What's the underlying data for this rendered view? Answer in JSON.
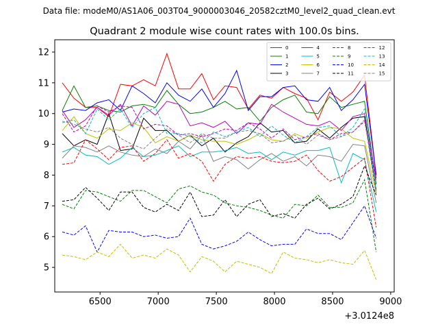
{
  "source_line": "Data file: modeM0/AS1A06_003T04_9000003046_20582cztM0_level2_quad_clean.evt",
  "chart_data": {
    "type": "line",
    "title": "Quadrant 2 module wise count rates with 100.0s bins.",
    "xlabel": "",
    "ylabel": "",
    "x_offset_label": "+3.0124e8",
    "xlim": [
      6110,
      9030
    ],
    "ylim": [
      4.2,
      12.4
    ],
    "xticks": [
      6500,
      7000,
      7500,
      8000,
      8500,
      9000
    ],
    "yticks": [
      5,
      6,
      7,
      8,
      9,
      10,
      11,
      12
    ],
    "x": [
      6175,
      6275,
      6375,
      6475,
      6575,
      6675,
      6775,
      6875,
      6975,
      7075,
      7175,
      7275,
      7375,
      7475,
      7575,
      7675,
      7775,
      7875,
      7975,
      8075,
      8175,
      8275,
      8375,
      8475,
      8575,
      8675,
      8775,
      8875
    ],
    "legend_position": "top-right",
    "series": [
      {
        "name": "0",
        "color": "#ff0000",
        "dash": "solid",
        "values": [
          11.0,
          10.5,
          10.2,
          10.2,
          9.9,
          10.95,
          10.9,
          11.1,
          10.9,
          11.95,
          10.8,
          10.8,
          11.3,
          10.45,
          10.9,
          10.85,
          10.15,
          10.6,
          10.5,
          10.85,
          10.65,
          10.5,
          9.8,
          10.7,
          10.4,
          10.7,
          11.25,
          8.0
        ]
      },
      {
        "name": "1",
        "color": "#008000",
        "dash": "solid",
        "values": [
          10.1,
          10.9,
          10.2,
          10.25,
          10.1,
          10.05,
          10.25,
          10.3,
          10.2,
          10.75,
          10.3,
          10.0,
          10.05,
          10.2,
          10.4,
          10.15,
          10.2,
          9.75,
          10.2,
          10.45,
          10.6,
          10.05,
          10.0,
          10.55,
          10.2,
          10.3,
          10.4,
          7.7
        ]
      },
      {
        "name": "2",
        "color": "#0000ff",
        "dash": "solid",
        "values": [
          10.05,
          10.15,
          10.1,
          10.35,
          10.45,
          10.1,
          10.9,
          10.65,
          10.35,
          11.0,
          10.6,
          10.4,
          10.8,
          10.2,
          10.65,
          11.4,
          10.1,
          10.55,
          10.55,
          10.85,
          10.9,
          10.45,
          10.4,
          10.85,
          10.1,
          10.45,
          10.95,
          8.0
        ]
      },
      {
        "name": "3",
        "color": "#000000",
        "dash": "solid",
        "values": [
          9.35,
          8.95,
          9.15,
          9.0,
          10.0,
          8.8,
          8.85,
          9.85,
          9.45,
          9.45,
          9.1,
          9.3,
          8.95,
          9.2,
          8.75,
          9.05,
          9.25,
          9.7,
          9.4,
          9.45,
          9.05,
          9.1,
          9.5,
          9.2,
          9.55,
          9.85,
          9.9,
          7.5
        ]
      },
      {
        "name": "4",
        "color": "#bf00bf",
        "dash": "solid",
        "values": [
          10.1,
          9.55,
          9.8,
          10.2,
          9.95,
          10.3,
          9.6,
          10.25,
          9.95,
          10.4,
          10.3,
          9.6,
          9.7,
          9.55,
          9.75,
          9.35,
          9.7,
          9.65,
          10.3,
          10.05,
          9.85,
          9.65,
          9.6,
          9.75,
          9.45,
          9.9,
          10.0,
          7.9
        ]
      },
      {
        "name": "5",
        "color": "#00bfbf",
        "dash": "solid",
        "values": [
          8.75,
          8.9,
          8.65,
          8.6,
          8.35,
          8.55,
          8.9,
          8.6,
          8.65,
          8.8,
          8.95,
          8.6,
          8.75,
          8.75,
          8.8,
          8.9,
          8.7,
          8.75,
          8.5,
          8.75,
          8.65,
          8.8,
          8.8,
          8.9,
          7.75,
          8.7,
          8.5,
          6.8
        ]
      },
      {
        "name": "6",
        "color": "#bfbf00",
        "dash": "solid",
        "values": [
          9.45,
          9.9,
          9.35,
          9.2,
          9.5,
          9.45,
          9.7,
          9.55,
          9.05,
          9.25,
          9.1,
          9.3,
          9.15,
          9.1,
          9.1,
          9.0,
          9.15,
          9.35,
          9.15,
          9.1,
          9.35,
          9.2,
          9.4,
          9.55,
          9.5,
          9.2,
          9.1,
          7.4
        ]
      },
      {
        "name": "7",
        "color": "#808080",
        "dash": "solid",
        "values": [
          8.55,
          8.95,
          8.9,
          8.75,
          8.95,
          8.75,
          8.65,
          8.6,
          8.85,
          8.7,
          9.1,
          8.85,
          9.3,
          8.45,
          8.6,
          8.5,
          8.2,
          8.5,
          8.7,
          8.45,
          8.6,
          8.3,
          8.65,
          8.6,
          8.45,
          9.0,
          8.95,
          7.1
        ]
      },
      {
        "name": "8",
        "color": "#ff0000",
        "dash": "dashed",
        "values": [
          8.35,
          8.4,
          9.15,
          8.85,
          8.5,
          8.9,
          8.95,
          8.45,
          8.7,
          9.15,
          8.55,
          8.7,
          8.45,
          7.8,
          8.35,
          8.6,
          8.55,
          8.6,
          8.45,
          8.4,
          8.45,
          8.65,
          8.15,
          7.8,
          7.95,
          8.25,
          8.55,
          6.3
        ]
      },
      {
        "name": "9",
        "color": "#008000",
        "dash": "dashed",
        "values": [
          7.05,
          6.9,
          7.5,
          7.45,
          7.3,
          7.15,
          7.5,
          7.5,
          7.3,
          7.1,
          7.55,
          7.65,
          7.45,
          7.35,
          7.1,
          7.0,
          6.95,
          6.85,
          6.7,
          6.6,
          7.05,
          7.0,
          7.35,
          6.95,
          6.95,
          7.1,
          7.85,
          5.5
        ]
      },
      {
        "name": "10",
        "color": "#0000ff",
        "dash": "dashed",
        "values": [
          6.15,
          6.05,
          6.35,
          5.5,
          6.2,
          6.15,
          6.15,
          6.0,
          6.05,
          5.95,
          6.0,
          6.6,
          5.75,
          5.6,
          5.7,
          5.85,
          6.15,
          5.9,
          5.7,
          5.75,
          5.75,
          6.25,
          6.1,
          6.1,
          5.9,
          6.45,
          7.0,
          5.95
        ]
      },
      {
        "name": "11",
        "color": "#000000",
        "dash": "dashed",
        "values": [
          7.15,
          7.2,
          7.6,
          7.25,
          6.85,
          7.45,
          7.45,
          6.95,
          6.8,
          7.05,
          6.85,
          7.45,
          6.65,
          6.7,
          7.2,
          6.65,
          7.05,
          7.2,
          6.65,
          6.75,
          6.6,
          7.05,
          7.25,
          6.9,
          7.05,
          7.3,
          8.3,
          7.35
        ]
      },
      {
        "name": "12",
        "color": "#bf00bf",
        "dash": "dashed",
        "values": [
          10.0,
          9.4,
          9.6,
          10.25,
          10.05,
          10.25,
          10.2,
          9.5,
          9.65,
          9.6,
          9.3,
          9.35,
          9.25,
          9.35,
          9.5,
          9.45,
          9.7,
          9.5,
          9.2,
          9.5,
          9.15,
          9.25,
          9.35,
          9.15,
          9.35,
          9.4,
          9.75,
          7.8
        ]
      },
      {
        "name": "13",
        "color": "#00bfbf",
        "dash": "dashed",
        "values": [
          9.7,
          9.8,
          9.35,
          10.15,
          9.8,
          10.15,
          9.55,
          10.0,
          10.2,
          9.35,
          9.35,
          9.25,
          9.05,
          9.4,
          9.25,
          9.4,
          9.55,
          9.25,
          9.6,
          9.3,
          9.05,
          9.25,
          9.55,
          9.6,
          9.25,
          9.55,
          10.15,
          7.5
        ]
      },
      {
        "name": "14",
        "color": "#bfbf00",
        "dash": "dashed",
        "values": [
          5.4,
          5.35,
          5.25,
          5.5,
          5.35,
          5.75,
          5.3,
          5.4,
          5.3,
          5.6,
          5.4,
          4.85,
          5.35,
          5.2,
          4.85,
          5.2,
          5.1,
          5.0,
          4.8,
          5.5,
          5.3,
          5.25,
          5.15,
          5.25,
          5.15,
          5.1,
          5.55,
          4.6
        ]
      },
      {
        "name": "15",
        "color": "#808080",
        "dash": "dashed",
        "values": [
          9.75,
          9.65,
          9.5,
          9.4,
          9.55,
          9.2,
          9.0,
          8.85,
          9.2,
          9.5,
          9.3,
          9.05,
          9.35,
          9.2,
          9.2,
          9.4,
          9.45,
          9.35,
          9.05,
          9.1,
          9.3,
          9.0,
          9.3,
          9.15,
          9.25,
          9.4,
          9.8,
          7.4
        ]
      }
    ]
  }
}
